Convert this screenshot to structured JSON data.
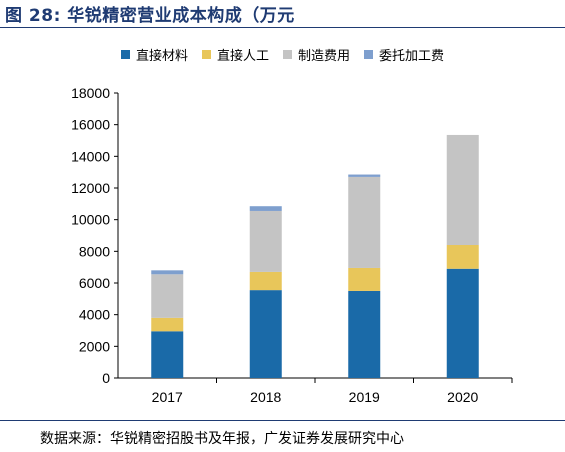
{
  "title": "图 28: 华锐精密营业成本构成（万元",
  "source": "数据来源：华锐精密招股书及年报，广发证券发展研究中心",
  "chart_data": {
    "type": "bar",
    "stacked": true,
    "categories": [
      "2017",
      "2018",
      "2019",
      "2020"
    ],
    "series": [
      {
        "name": "直接材料",
        "color": "#1a6aa8",
        "values": [
          2950,
          5550,
          5500,
          6900
        ]
      },
      {
        "name": "直接人工",
        "color": "#e8c65a",
        "values": [
          850,
          1150,
          1450,
          1500
        ]
      },
      {
        "name": "制造费用",
        "color": "#c4c4c4",
        "values": [
          2750,
          3850,
          5750,
          6950
        ]
      },
      {
        "name": "委托加工费",
        "color": "#7e9fce",
        "values": [
          250,
          300,
          150,
          0
        ]
      }
    ],
    "ylim": [
      0,
      18000
    ],
    "yticks": [
      0,
      2000,
      4000,
      6000,
      8000,
      10000,
      12000,
      14000,
      16000,
      18000
    ],
    "grid": false,
    "legend": "top"
  }
}
